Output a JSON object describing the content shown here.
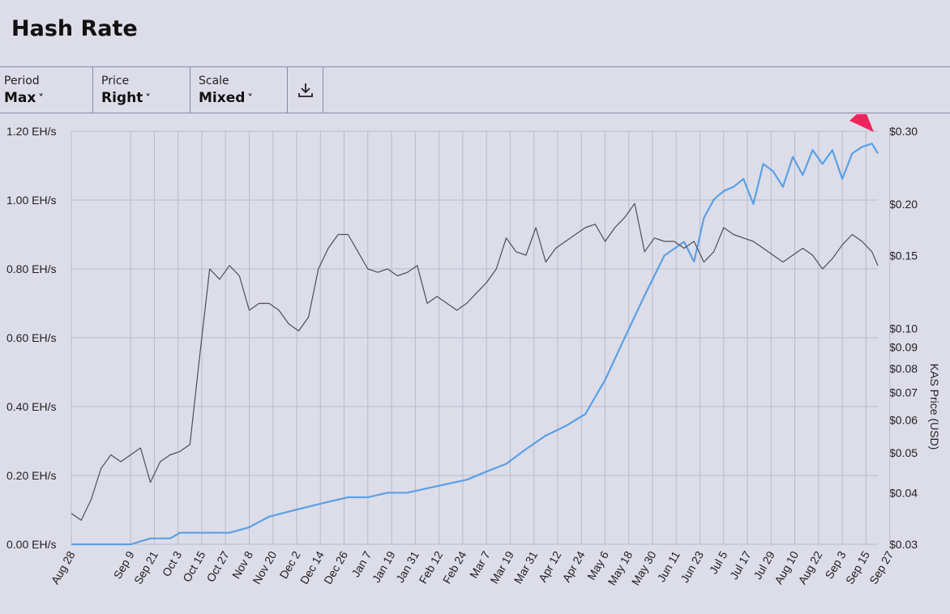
{
  "header": {
    "title": "Hash Rate"
  },
  "toolbar": {
    "period": {
      "label": "Period",
      "value": "Max"
    },
    "price": {
      "label": "Price",
      "value": "Right"
    },
    "scale": {
      "label": "Scale",
      "value": "Mixed"
    },
    "download_icon": "download-icon"
  },
  "colors": {
    "background": "#dcdde8",
    "hashrate_line": "#4e4e58",
    "price_line": "#5aa0e6",
    "annotation_arrow": "#f0245c"
  },
  "chart_data": {
    "type": "line",
    "x_tick_labels": [
      "Aug 28",
      "Sep 9",
      "Sep 21",
      "Oct 3",
      "Oct 15",
      "Oct 27",
      "Nov 8",
      "Nov 20",
      "Dec 2",
      "Dec 14",
      "Dec 26",
      "Jan 7",
      "Jan 19",
      "Jan 31",
      "Feb 12",
      "Feb 24",
      "Mar 7",
      "Mar 19",
      "Mar 31",
      "Apr 12",
      "Apr 24",
      "May 6",
      "May 18",
      "May 30",
      "Jun 11",
      "Jun 23",
      "Jul 5",
      "Jul 17",
      "Jul 29",
      "Aug 10",
      "Aug 22",
      "Sep 3",
      "Sep 15",
      "Sep 27"
    ],
    "left_axis": {
      "tick_labels": [
        "0.00 EH/s",
        "0.20 EH/s",
        "0.40 EH/s",
        "0.60 EH/s",
        "0.80 EH/s",
        "1.00 EH/s",
        "1.20 EH/s"
      ],
      "ylim": [
        0,
        1.2
      ]
    },
    "right_axis": {
      "label": "KAS Price (USD)",
      "scale": "log",
      "tick_labels": [
        "$0.03",
        "$0.04",
        "$0.05",
        "$0.06",
        "$0.07",
        "$0.08",
        "$0.09",
        "$0.10",
        "$0.15",
        "$0.20",
        "$0.30"
      ],
      "ylim": [
        0.03,
        0.3
      ]
    },
    "grid": true,
    "series": [
      {
        "axis": "right",
        "x": [
          0,
          10,
          20,
          30,
          40,
          50,
          55,
          60,
          70,
          80,
          90,
          95,
          100,
          110,
          120,
          130,
          140,
          150,
          160,
          170,
          180,
          190,
          200,
          210,
          220,
          230,
          240,
          250,
          260,
          270,
          280,
          290,
          300,
          310,
          315,
          320,
          325,
          330,
          335,
          340,
          345,
          350,
          355,
          360,
          365,
          370,
          375,
          380,
          385,
          390,
          395,
          400,
          405,
          408
        ],
        "values": [
          0.03,
          0.03,
          0.03,
          0.03,
          0.031,
          0.031,
          0.032,
          0.032,
          0.032,
          0.032,
          0.033,
          0.034,
          0.035,
          0.036,
          0.037,
          0.038,
          0.039,
          0.039,
          0.04,
          0.04,
          0.041,
          0.042,
          0.043,
          0.045,
          0.047,
          0.051,
          0.055,
          0.058,
          0.062,
          0.075,
          0.095,
          0.12,
          0.15,
          0.162,
          0.145,
          0.185,
          0.205,
          0.215,
          0.22,
          0.23,
          0.2,
          0.25,
          0.24,
          0.22,
          0.26,
          0.235,
          0.27,
          0.25,
          0.27,
          0.23,
          0.265,
          0.275,
          0.28,
          0.265
        ]
      },
      {
        "axis": "left",
        "x": [
          0,
          5,
          10,
          15,
          20,
          25,
          30,
          35,
          40,
          45,
          50,
          55,
          60,
          65,
          70,
          75,
          80,
          85,
          90,
          95,
          100,
          105,
          110,
          115,
          120,
          125,
          130,
          135,
          140,
          145,
          150,
          155,
          160,
          165,
          170,
          175,
          180,
          185,
          190,
          195,
          200,
          205,
          210,
          215,
          220,
          225,
          230,
          235,
          240,
          245,
          250,
          255,
          260,
          265,
          270,
          275,
          280,
          285,
          290,
          295,
          300,
          305,
          310,
          315,
          320,
          325,
          330,
          335,
          340,
          345,
          350,
          355,
          360,
          365,
          370,
          375,
          380,
          385,
          390,
          395,
          400,
          405,
          408
        ],
        "values": [
          0.09,
          0.07,
          0.13,
          0.22,
          0.26,
          0.24,
          0.26,
          0.28,
          0.18,
          0.24,
          0.26,
          0.27,
          0.29,
          0.55,
          0.8,
          0.77,
          0.81,
          0.78,
          0.68,
          0.7,
          0.7,
          0.68,
          0.64,
          0.62,
          0.66,
          0.8,
          0.86,
          0.9,
          0.9,
          0.85,
          0.8,
          0.79,
          0.8,
          0.78,
          0.79,
          0.81,
          0.7,
          0.72,
          0.7,
          0.68,
          0.7,
          0.73,
          0.76,
          0.8,
          0.89,
          0.85,
          0.84,
          0.92,
          0.82,
          0.86,
          0.88,
          0.9,
          0.92,
          0.93,
          0.88,
          0.92,
          0.95,
          0.99,
          0.85,
          0.89,
          0.88,
          0.88,
          0.86,
          0.88,
          0.82,
          0.85,
          0.92,
          0.9,
          0.89,
          0.88,
          0.86,
          0.84,
          0.82,
          0.84,
          0.86,
          0.84,
          0.8,
          0.83,
          0.87,
          0.9,
          0.88,
          0.85,
          0.81
        ]
      }
    ]
  }
}
